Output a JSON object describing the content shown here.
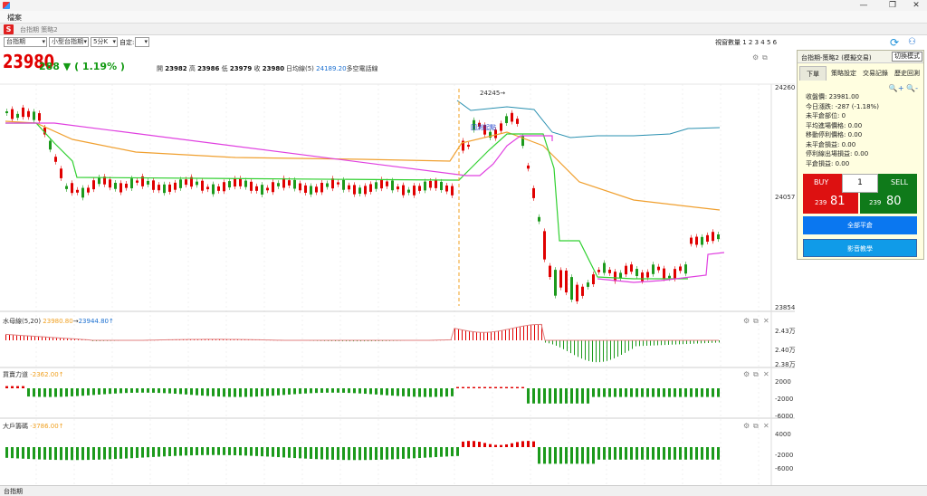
{
  "window": {
    "menu_label": "檔案",
    "subtitle": "台指期 策略2"
  },
  "toolbar": {
    "product": "台指期",
    "contract": "小型台指期",
    "interval": "5分K",
    "custom_label": "自定:",
    "window_count_label": "視窗數量 1 2 3 4 5 6"
  },
  "quote": {
    "last": "23980",
    "change": "288 ▼ ( 1.19% )",
    "open_label": "開",
    "open": "23982",
    "high_label": "高",
    "high": "23986",
    "low_label": "低",
    "low": "23979",
    "close_label": "收",
    "close": "23980",
    "avg_label": "日均線(5)",
    "avg_value": "24189.20",
    "avg_suffix": "多空電話線"
  },
  "main_chart": {
    "y_high": "24260",
    "y_mid": "24057",
    "y_low": "23854",
    "peak_label": "24245→",
    "marker_label": "回測起點",
    "colors": {
      "up": "#e00000",
      "down": "#1c9a1c",
      "ma_orange": "#f0a030",
      "ma_green": "#30d030",
      "ma_magenta": "#e040e0",
      "ma_blue": "#2a90b0"
    }
  },
  "panel1": {
    "name": "水母線(5,20)",
    "v1": "23980.80",
    "arrow": "→",
    "v2": "23944.80↑",
    "y1": "2.43万",
    "y2": "2.40万",
    "y3": "2.38万"
  },
  "panel2": {
    "name": "買賣力道",
    "value": "-2362.00↑",
    "y1": "2000",
    "y2": "-2000",
    "y3": "-6000"
  },
  "panel3": {
    "name": "大戶籌碼",
    "value": "-3786.00↑",
    "y1": "4000",
    "y2": "-2000",
    "y3": "-6000"
  },
  "side": {
    "title": "台指期-策略2 (模擬交易)",
    "switch_mode": "切換模式",
    "tabs": [
      "下單",
      "策略設定",
      "交易記錄",
      "歷史回測"
    ],
    "info": [
      "收盤價: 23981.00",
      "今日漲跌: -287 (-1.18%)",
      "未平倉部位: 0",
      "平均進場價格: 0.00",
      "移動停利價格: 0.00",
      "未平倉損益: 0.00",
      "停利線出場損益: 0.00",
      "平倉損益: 0.00"
    ],
    "buy_label": "BUY",
    "sell_label": "SELL",
    "qty": "1",
    "buy_small": "239",
    "buy_big": "81",
    "sell_small": "239",
    "sell_big": "80",
    "close_all": "全部平倉",
    "video": "影音教學"
  },
  "status": {
    "label": "台指期"
  }
}
